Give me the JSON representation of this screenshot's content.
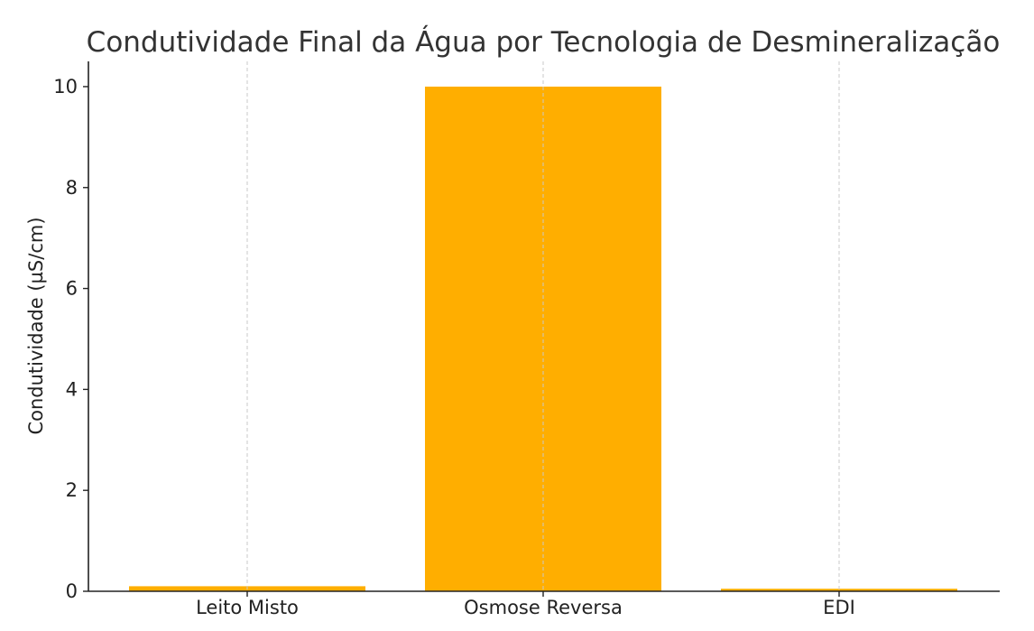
{
  "chart_data": {
    "type": "bar",
    "title": "Condutividade Final da Água por Tecnologia de Desmineralização",
    "xlabel": "",
    "ylabel": "Condutividade (µS/cm)",
    "categories": [
      "Leito Misto",
      "Osmose Reversa",
      "EDI"
    ],
    "values": [
      0.1,
      10,
      0.05
    ],
    "ylim": [
      0,
      10.5
    ],
    "yticks": [
      0,
      2,
      4,
      6,
      8,
      10
    ],
    "grid": "x-axis dashed",
    "legend": "none",
    "bar_color": "#ffae00",
    "spines": "left and bottom only"
  }
}
